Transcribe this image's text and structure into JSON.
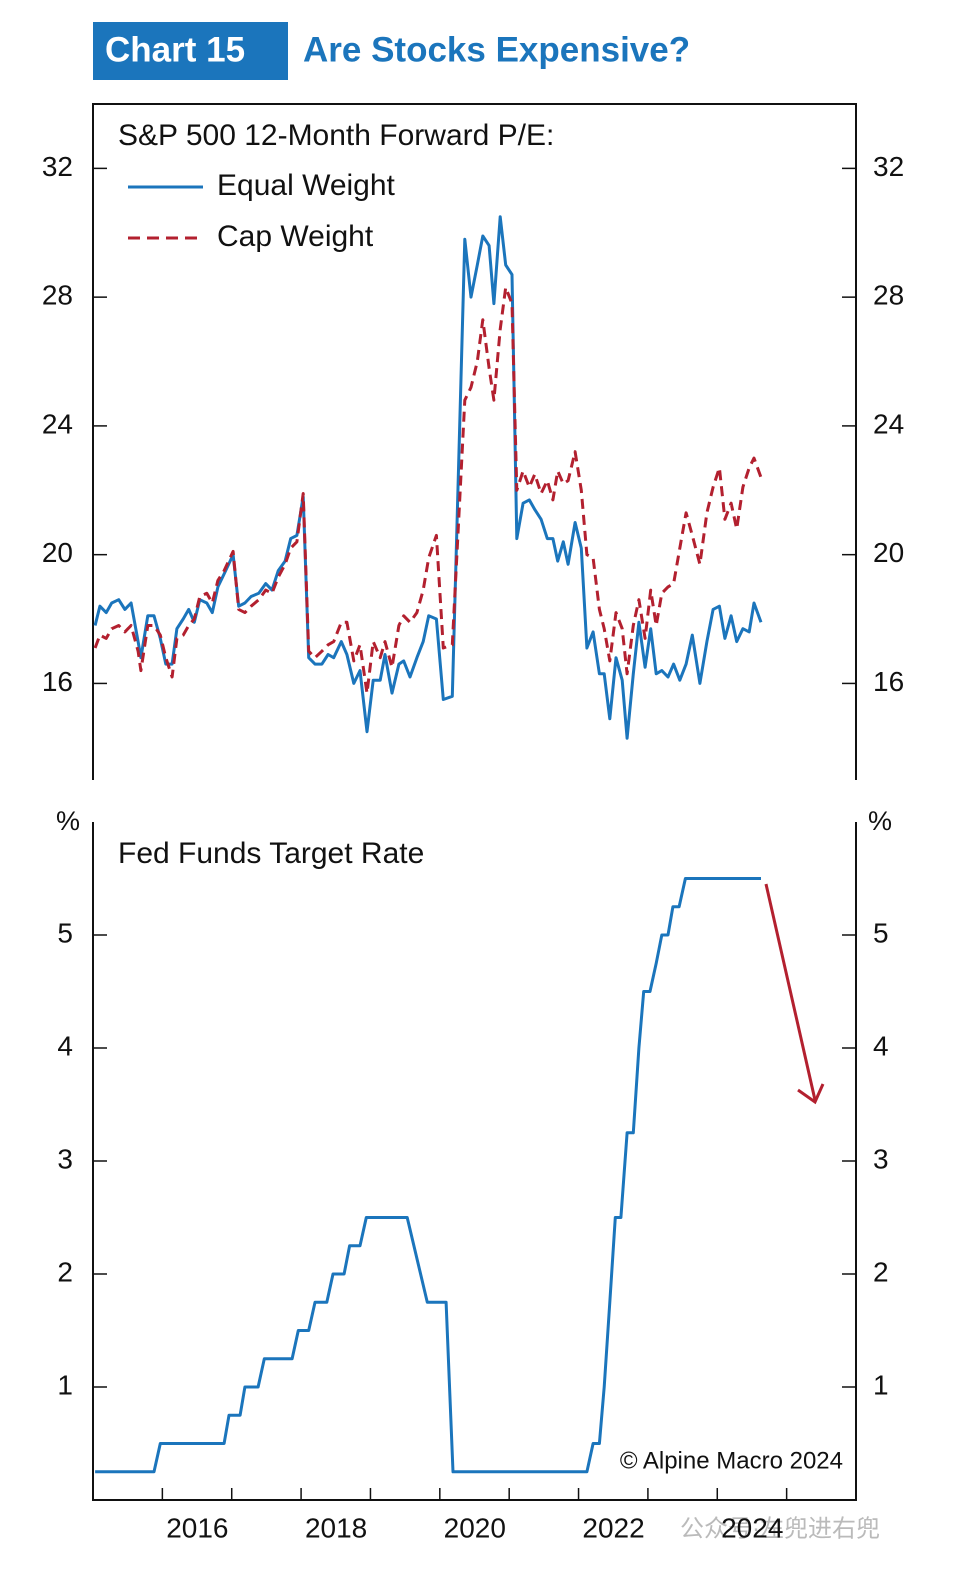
{
  "header": {
    "label": "Chart 15",
    "title": "Are Stocks Expensive?"
  },
  "footer": {
    "copyright": "© Alpine Macro 2024",
    "watermark": "公众号·左兜进右兜"
  },
  "chart_data": [
    {
      "type": "line",
      "legend_title": "S&P 500 12-Month Forward P/E:",
      "xlim": [
        2015,
        2026
      ],
      "ylim": [
        13,
        34
      ],
      "yticks": [
        16,
        20,
        24,
        28,
        32
      ],
      "y2lim": [
        13,
        34
      ],
      "y2ticks": [
        16,
        20,
        24,
        28,
        32
      ],
      "x": [
        2015.03,
        2015.1,
        2015.19,
        2015.27,
        2015.37,
        2015.46,
        2015.55,
        2015.65,
        2015.69,
        2015.79,
        2015.88,
        2015.97,
        2016.05,
        2016.14,
        2016.21,
        2016.3,
        2016.38,
        2016.46,
        2016.54,
        2016.64,
        2016.72,
        2016.8,
        2016.89,
        2017.02,
        2017.1,
        2017.19,
        2017.28,
        2017.39,
        2017.49,
        2017.58,
        2017.67,
        2017.77,
        2017.85,
        2017.94,
        2018.03,
        2018.11,
        2018.2,
        2018.3,
        2018.39,
        2018.47,
        2018.58,
        2018.66,
        2018.76,
        2018.85,
        2018.95,
        2019.04,
        2019.14,
        2019.21,
        2019.31,
        2019.41,
        2019.48,
        2019.57,
        2019.67,
        2019.76,
        2019.84,
        2019.95,
        2020.05,
        2020.18,
        2020.36,
        2020.45,
        2020.54,
        2020.62,
        2020.71,
        2020.78,
        2020.87,
        2020.95,
        2021.04,
        2021.11,
        2021.2,
        2021.29,
        2021.37,
        2021.46,
        2021.55,
        2021.63,
        2021.7,
        2021.78,
        2021.85,
        2021.95,
        2022.04,
        2022.12,
        2022.21,
        2022.3,
        2022.37,
        2022.45,
        2022.54,
        2022.63,
        2022.7,
        2022.79,
        2022.87,
        2022.96,
        2023.04,
        2023.12,
        2023.2,
        2023.29,
        2023.37,
        2023.46,
        2023.55,
        2023.64,
        2023.75,
        2023.85,
        2023.94,
        2024.03,
        2024.11,
        2024.2,
        2024.28,
        2024.37,
        2024.46,
        2024.53,
        2024.63
      ],
      "series": [
        {
          "name": "Equal Weight",
          "color": "#1b75bc",
          "dashed": false,
          "values": [
            17.8,
            18.4,
            18.2,
            18.5,
            18.6,
            18.3,
            18.5,
            17.3,
            16.8,
            18.1,
            18.1,
            17.4,
            16.6,
            16.6,
            17.7,
            18.0,
            18.3,
            17.9,
            18.6,
            18.5,
            18.2,
            19.0,
            19.4,
            20.0,
            18.4,
            18.5,
            18.7,
            18.8,
            19.1,
            18.9,
            19.5,
            19.8,
            20.5,
            20.6,
            21.8,
            16.8,
            16.6,
            16.6,
            16.9,
            16.8,
            17.3,
            16.9,
            16.0,
            16.4,
            14.5,
            16.1,
            16.1,
            16.9,
            15.7,
            16.6,
            16.7,
            16.2,
            16.8,
            17.3,
            18.1,
            18.0,
            15.5,
            15.6,
            29.8,
            28.0,
            29.0,
            29.9,
            29.6,
            27.8,
            30.5,
            29.0,
            28.7,
            20.5,
            21.6,
            21.7,
            21.4,
            21.1,
            20.5,
            20.5,
            19.8,
            20.4,
            19.7,
            21.0,
            20.2,
            17.1,
            17.6,
            16.3,
            16.3,
            14.9,
            16.8,
            16.1,
            14.3,
            16.3,
            17.9,
            16.5,
            17.7,
            16.3,
            16.4,
            16.2,
            16.6,
            16.1,
            16.6,
            17.5,
            16.0,
            17.3,
            18.3,
            18.4,
            17.4,
            18.1,
            17.3,
            17.7,
            17.6,
            18.5,
            17.9
          ]
        },
        {
          "name": "Cap Weight",
          "color": "#b3202f",
          "dashed": true,
          "values": [
            17.1,
            17.5,
            17.4,
            17.7,
            17.8,
            17.6,
            17.8,
            17.0,
            16.4,
            17.8,
            17.8,
            17.5,
            16.8,
            16.2,
            17.4,
            17.5,
            17.8,
            18.0,
            18.7,
            18.8,
            18.5,
            19.2,
            19.5,
            20.1,
            18.3,
            18.2,
            18.4,
            18.6,
            18.9,
            18.8,
            19.3,
            19.7,
            20.2,
            20.4,
            21.9,
            17.0,
            16.8,
            17.0,
            17.2,
            17.3,
            17.9,
            17.9,
            16.7,
            17.2,
            15.7,
            17.3,
            16.8,
            17.3,
            16.5,
            17.8,
            18.1,
            17.9,
            18.2,
            18.9,
            19.9,
            20.6,
            17.1,
            17.2,
            24.8,
            25.2,
            26.0,
            27.3,
            25.8,
            24.8,
            27.0,
            28.3,
            27.8,
            22.0,
            22.6,
            22.1,
            22.5,
            21.9,
            22.3,
            21.7,
            22.6,
            22.2,
            22.3,
            23.2,
            22.0,
            20.0,
            19.9,
            18.3,
            17.7,
            16.7,
            18.2,
            17.7,
            16.3,
            17.8,
            18.6,
            17.4,
            18.9,
            17.8,
            18.8,
            19.0,
            19.1,
            20.2,
            21.3,
            20.6,
            19.7,
            21.3,
            22.1,
            22.7,
            21.1,
            21.6,
            20.8,
            22.1,
            22.7,
            23.0,
            22.4
          ]
        }
      ]
    },
    {
      "type": "line",
      "title": "Fed Funds Target Rate",
      "y_unit": "%",
      "xlim": [
        2015,
        2026
      ],
      "ylim": [
        0,
        6
      ],
      "yticks": [
        1,
        2,
        3,
        4,
        5
      ],
      "y2lim": [
        0,
        6
      ],
      "y2ticks": [
        1,
        2,
        3,
        4,
        5
      ],
      "xticks": [
        2016,
        {
          "value": 2017,
          "label": null
        },
        2018,
        {
          "value": 2019,
          "label": null
        },
        2020,
        {
          "value": 2021,
          "label": null
        },
        2022,
        {
          "value": 2023,
          "label": null
        },
        2024,
        {
          "value": 2025,
          "label": null
        }
      ],
      "x": [
        2015.03,
        2015.88,
        2015.97,
        2016.89,
        2016.96,
        2017.12,
        2017.19,
        2017.38,
        2017.47,
        2017.87,
        2017.96,
        2018.11,
        2018.2,
        2018.37,
        2018.46,
        2018.62,
        2018.7,
        2018.85,
        2018.94,
        2019.53,
        2019.82,
        2020.09,
        2020.19,
        2022.12,
        2022.21,
        2022.3,
        2022.37,
        2022.45,
        2022.53,
        2022.61,
        2022.7,
        2022.79,
        2022.87,
        2022.94,
        2023.03,
        2023.12,
        2023.2,
        2023.29,
        2023.36,
        2023.45,
        2023.54,
        2024.63
      ],
      "values": [
        0.25,
        0.25,
        0.5,
        0.5,
        0.75,
        0.75,
        1.0,
        1.0,
        1.25,
        1.25,
        1.5,
        1.5,
        1.75,
        1.75,
        2.0,
        2.0,
        2.25,
        2.25,
        2.5,
        2.5,
        1.75,
        1.75,
        0.25,
        0.25,
        0.5,
        0.5,
        1.0,
        1.75,
        2.5,
        2.5,
        3.25,
        3.25,
        4.0,
        4.5,
        4.5,
        4.75,
        5.0,
        5.0,
        5.25,
        5.25,
        5.5,
        5.5
      ],
      "color": "#1b75bc"
    }
  ]
}
